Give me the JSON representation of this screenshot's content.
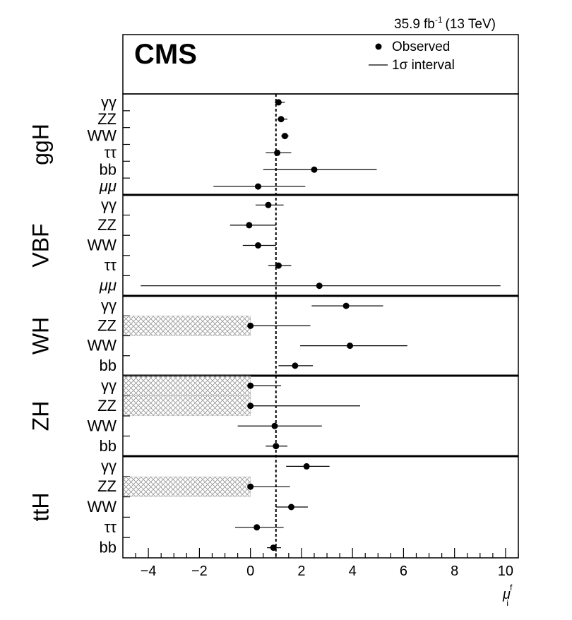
{
  "header": {
    "lumi_value": "35.9",
    "lumi_unit": "fb",
    "lumi_exp": "-1",
    "energy": "(13 TeV)"
  },
  "legend": {
    "cms": "CMS",
    "observed": "Observed",
    "interval": "1σ interval"
  },
  "chart_data": {
    "type": "scatter",
    "xlim": [
      -5,
      10.5
    ],
    "x_ticks": [
      -4,
      -2,
      0,
      2,
      4,
      6,
      8,
      10
    ],
    "x_tick_labels": [
      "−4",
      "−2",
      "0",
      "2",
      "4",
      "6",
      "8",
      "10"
    ],
    "xlabel": "μ",
    "xlabel_sup": "f",
    "xlabel_sub": "i",
    "reference_line": 1,
    "groups": [
      {
        "name": "ggH",
        "entries": [
          {
            "label": "γγ",
            "value": 1.1,
            "low": 0.95,
            "high": 1.35,
            "shaded": false
          },
          {
            "label": "ZZ",
            "value": 1.2,
            "low": 1.05,
            "high": 1.45,
            "shaded": false
          },
          {
            "label": "WW",
            "value": 1.35,
            "low": 1.2,
            "high": 1.5,
            "shaded": false
          },
          {
            "label": "ττ",
            "value": 1.05,
            "low": 0.6,
            "high": 1.6,
            "shaded": false
          },
          {
            "label": "bb",
            "value": 2.5,
            "low": 0.5,
            "high": 4.95,
            "shaded": false
          },
          {
            "label": "μμ",
            "value": 0.3,
            "low": -1.45,
            "high": 2.15,
            "shaded": false
          }
        ]
      },
      {
        "name": "VBF",
        "entries": [
          {
            "label": "γγ",
            "value": 0.7,
            "low": 0.2,
            "high": 1.3,
            "shaded": false
          },
          {
            "label": "ZZ",
            "value": -0.05,
            "low": -0.8,
            "high": 1.0,
            "shaded": false
          },
          {
            "label": "WW",
            "value": 0.3,
            "low": -0.3,
            "high": 1.0,
            "shaded": false
          },
          {
            "label": "ττ",
            "value": 1.1,
            "low": 0.7,
            "high": 1.6,
            "shaded": false
          },
          {
            "label": "μμ",
            "value": 2.7,
            "low": -4.3,
            "high": 9.8,
            "shaded": false
          }
        ]
      },
      {
        "name": "WH",
        "entries": [
          {
            "label": "γγ",
            "value": 3.75,
            "low": 2.4,
            "high": 5.2,
            "shaded": false
          },
          {
            "label": "ZZ",
            "value": 0.0,
            "low": 0.0,
            "high": 2.35,
            "shaded": true
          },
          {
            "label": "WW",
            "value": 3.9,
            "low": 1.95,
            "high": 6.15,
            "shaded": false
          },
          {
            "label": "bb",
            "value": 1.75,
            "low": 1.1,
            "high": 2.45,
            "shaded": false
          }
        ]
      },
      {
        "name": "ZH",
        "entries": [
          {
            "label": "γγ",
            "value": 0.0,
            "low": 0.0,
            "high": 1.2,
            "shaded": true
          },
          {
            "label": "ZZ",
            "value": 0.0,
            "low": 0.0,
            "high": 4.3,
            "shaded": true
          },
          {
            "label": "WW",
            "value": 0.95,
            "low": -0.5,
            "high": 2.8,
            "shaded": false
          },
          {
            "label": "bb",
            "value": 1.0,
            "low": 0.6,
            "high": 1.45,
            "shaded": false
          }
        ]
      },
      {
        "name": "ttH",
        "entries": [
          {
            "label": "γγ",
            "value": 2.2,
            "low": 1.4,
            "high": 3.1,
            "shaded": false
          },
          {
            "label": "ZZ",
            "value": 0.0,
            "low": 0.0,
            "high": 1.55,
            "shaded": true
          },
          {
            "label": "WW",
            "value": 1.6,
            "low": 1.0,
            "high": 2.25,
            "shaded": false
          },
          {
            "label": "ττ",
            "value": 0.25,
            "low": -0.6,
            "high": 1.3,
            "shaded": false
          },
          {
            "label": "bb",
            "value": 0.9,
            "low": 0.65,
            "high": 1.2,
            "shaded": false
          }
        ]
      }
    ]
  }
}
